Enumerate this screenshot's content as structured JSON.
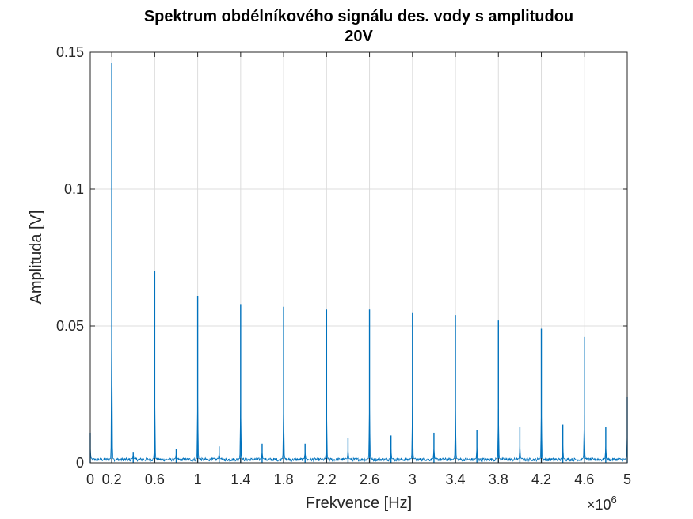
{
  "chart_data": {
    "type": "line",
    "title_line1": "Spektrum obdélníkového signálu des. vody s amplitudou",
    "title_line2": "20V",
    "xlabel": "Frekvence [Hz]",
    "ylabel": "Amplituda [V]",
    "x_exponent_base": "×10",
    "x_exponent_power": "6",
    "xlim": [
      0,
      5
    ],
    "ylim": [
      0,
      0.15
    ],
    "x_ticks": [
      0,
      0.2,
      0.6,
      1,
      1.4,
      1.8,
      2.2,
      2.6,
      3,
      3.4,
      3.8,
      4.2,
      4.6,
      5
    ],
    "x_tick_labels": [
      "0",
      "0.2",
      "0.6",
      "1",
      "1.4",
      "1.8",
      "2.2",
      "2.6",
      "3",
      "3.4",
      "3.8",
      "4.2",
      "4.6",
      "5"
    ],
    "y_ticks": [
      0,
      0.05,
      0.1,
      0.15
    ],
    "y_tick_labels": [
      "0",
      "0.05",
      "0.1",
      "0.15"
    ],
    "grid": true,
    "legend": "none",
    "series_color": "#0072BD",
    "series": [
      {
        "x_unit": "MHz",
        "peaks": [
          {
            "x": 0.0,
            "y": 0.011
          },
          {
            "x": 0.2,
            "y": 0.146
          },
          {
            "x": 0.4,
            "y": 0.004
          },
          {
            "x": 0.6,
            "y": 0.07
          },
          {
            "x": 0.8,
            "y": 0.005
          },
          {
            "x": 1.0,
            "y": 0.061
          },
          {
            "x": 1.2,
            "y": 0.006
          },
          {
            "x": 1.4,
            "y": 0.058
          },
          {
            "x": 1.6,
            "y": 0.007
          },
          {
            "x": 1.8,
            "y": 0.057
          },
          {
            "x": 2.0,
            "y": 0.007
          },
          {
            "x": 2.2,
            "y": 0.056
          },
          {
            "x": 2.4,
            "y": 0.009
          },
          {
            "x": 2.6,
            "y": 0.056
          },
          {
            "x": 2.8,
            "y": 0.01
          },
          {
            "x": 3.0,
            "y": 0.055
          },
          {
            "x": 3.2,
            "y": 0.011
          },
          {
            "x": 3.4,
            "y": 0.054
          },
          {
            "x": 3.6,
            "y": 0.012
          },
          {
            "x": 3.8,
            "y": 0.052
          },
          {
            "x": 4.0,
            "y": 0.013
          },
          {
            "x": 4.2,
            "y": 0.049
          },
          {
            "x": 4.4,
            "y": 0.014
          },
          {
            "x": 4.6,
            "y": 0.046
          },
          {
            "x": 4.8,
            "y": 0.013
          },
          {
            "x": 5.0,
            "y": 0.024
          }
        ]
      }
    ]
  }
}
